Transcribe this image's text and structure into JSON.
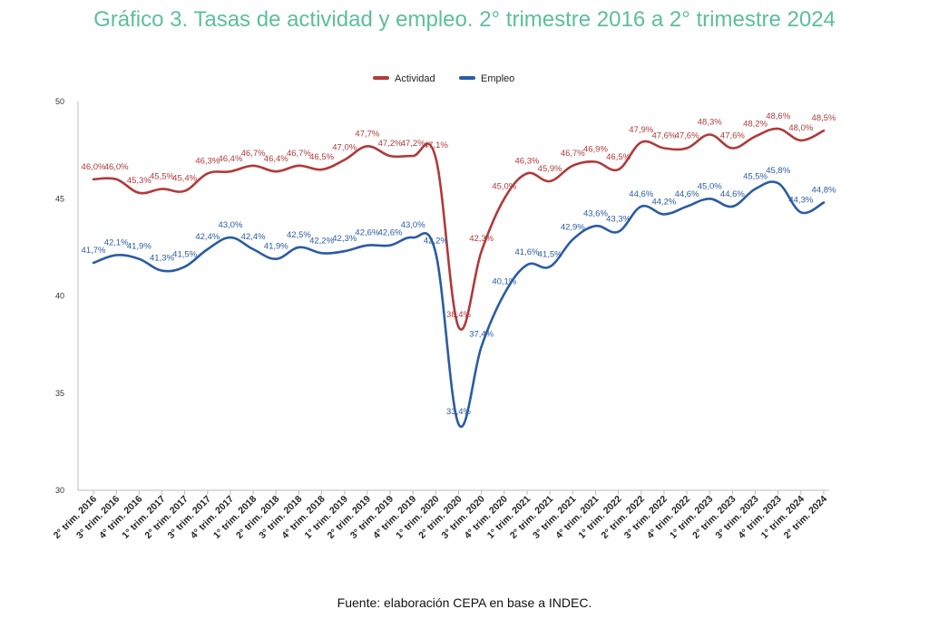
{
  "title": "Gráfico 3. Tasas de actividad y empleo. 2° trimestre 2016 a 2° trimestre 2024",
  "source": "Fuente: elaboración CEPA en base a INDEC.",
  "chart_data": {
    "type": "line",
    "title": "Gráfico 3. Tasas de actividad y empleo. 2° trimestre 2016 a 2° trimestre 2024",
    "xlabel": "",
    "ylabel": "",
    "ylim": [
      30,
      50
    ],
    "yticks": [
      "30",
      "35",
      "40",
      "45",
      "50"
    ],
    "grid": false,
    "legend_position": "top-center",
    "categories": [
      "2° trim. 2016",
      "3° trim. 2016",
      "4° trim. 2016",
      "1° trim. 2017",
      "2° trim. 2017",
      "3° trim. 2017",
      "4° trim. 2017",
      "1° trim. 2018",
      "2° trim. 2018",
      "3° trim. 2018",
      "4° trim. 2018",
      "1° trim. 2019",
      "2° trim. 2019",
      "3° trim. 2019",
      "4° trim. 2019",
      "1° trim. 2020",
      "2° trim. 2020",
      "3° trim. 2020",
      "4° trim. 2020",
      "1° trim. 2021",
      "2° trim. 2021",
      "3° trim. 2021",
      "4° trim. 2021",
      "1° trim. 2022",
      "2° trim. 2022",
      "3° trim. 2022",
      "4° trim. 2022",
      "1° trim. 2023",
      "2° trim. 2023",
      "3° trim. 2023",
      "4° trim. 2023",
      "1° trim. 2024",
      "2° trim. 2024"
    ],
    "series": [
      {
        "name": "Actividad",
        "color": "#b03a3a",
        "values": [
          46.0,
          46.0,
          45.3,
          45.5,
          45.4,
          46.3,
          46.4,
          46.7,
          46.4,
          46.7,
          46.5,
          47.0,
          47.7,
          47.2,
          47.2,
          47.1,
          38.4,
          42.3,
          45.0,
          46.3,
          45.9,
          46.7,
          46.9,
          46.5,
          47.9,
          47.6,
          47.6,
          48.3,
          47.6,
          48.2,
          48.6,
          48.0,
          48.5
        ],
        "labels": [
          "46,0%",
          "46,0%",
          "45,3%",
          "45,5%",
          "45,4%",
          "46,3%",
          "46,4%",
          "46,7%",
          "46,4%",
          "46,7%",
          "46,5%",
          "47,0%",
          "47,7%",
          "47,2%",
          "47,2%",
          "47,1%",
          "38,4%",
          "42,3%",
          "45,0%",
          "46,3%",
          "45,9%",
          "46,7%",
          "46,9%",
          "46,5%",
          "47,9%",
          "47,6%",
          "47,6%",
          "48,3%",
          "47,6%",
          "48,2%",
          "48,6%",
          "48,0%",
          "48,5%"
        ]
      },
      {
        "name": "Empleo",
        "color": "#2a5ca3",
        "values": [
          41.7,
          42.1,
          41.9,
          41.3,
          41.5,
          42.4,
          43.0,
          42.4,
          41.9,
          42.5,
          42.2,
          42.3,
          42.6,
          42.6,
          43.0,
          42.2,
          33.4,
          37.4,
          40.1,
          41.6,
          41.5,
          42.9,
          43.6,
          43.3,
          44.6,
          44.2,
          44.6,
          45.0,
          44.6,
          45.5,
          45.8,
          44.3,
          44.8
        ],
        "labels": [
          "41,7%",
          "42,1%",
          "41,9%",
          "41,3%",
          "41,5%",
          "42,4%",
          "43,0%",
          "42,4%",
          "41,9%",
          "42,5%",
          "42,2%",
          "42,3%",
          "42,6%",
          "42,6%",
          "43,0%",
          "42,2%",
          "33,4%",
          "37,4%",
          "40,1%",
          "41,6%",
          "41,5%",
          "42,9%",
          "43,6%",
          "43,3%",
          "44,6%",
          "44,2%",
          "44,6%",
          "45,0%",
          "44,6%",
          "45,5%",
          "45,8%",
          "44,3%",
          "44,8%"
        ]
      }
    ]
  }
}
